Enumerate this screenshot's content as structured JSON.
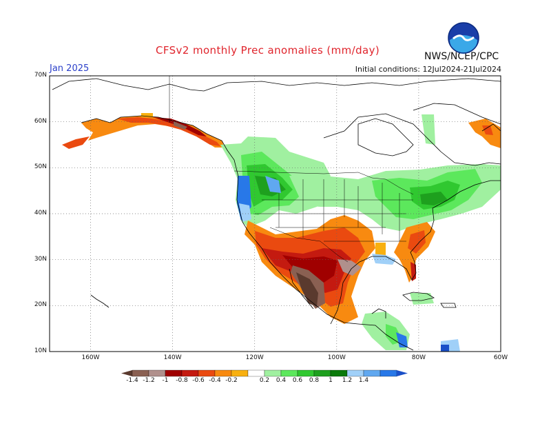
{
  "header": {
    "title": "CFSv2 monthly Prec anomalies (mm/day)",
    "agency": "NWS/NCEP/CPC",
    "logo_text": "NOAA",
    "month": "Jan 2025",
    "initial_conditions": "Initial conditions: 12Jul2024-21Jul2024"
  },
  "map": {
    "lat_labels": [
      "70N",
      "60N",
      "50N",
      "40N",
      "30N",
      "20N",
      "10N"
    ],
    "lon_labels": [
      "160W",
      "140W",
      "120W",
      "100W",
      "80W",
      "60W"
    ],
    "lon_range": [
      -170,
      -60
    ],
    "lat_range": [
      10,
      70
    ],
    "projection": "cylindrical equidistant",
    "grid": "dotted every 10 degrees",
    "anomaly_regions": [
      {
        "region": "Alaska south coast",
        "anomaly": "-0.2 to -0.8"
      },
      {
        "region": "British Columbia coast",
        "anomaly": "-0.4 to -0.8"
      },
      {
        "region": "Pacific Northwest coast",
        "anomaly": "1.0 to 1.2"
      },
      {
        "region": "Northern Rockies / Northern Plains",
        "anomaly": "0.2 to 0.8"
      },
      {
        "region": "Great Lakes / Northeast US",
        "anomaly": "0.2 to 0.8"
      },
      {
        "region": "Eastern Canada",
        "anomaly": "0.2 to 0.4"
      },
      {
        "region": "Southern California / Southwest",
        "anomaly": "-0.4 to -0.8"
      },
      {
        "region": "Southern Plains / Texas",
        "anomaly": "-0.2 to -1.2"
      },
      {
        "region": "Northwest Mexico",
        "anomaly": "-1.0 to -1.4"
      },
      {
        "region": "Southeast US coast / Florida",
        "anomaly": "-0.2 to -0.6"
      },
      {
        "region": "Central America / Caribbean",
        "anomaly": "0.2 to 1.2"
      },
      {
        "region": "Newfoundland",
        "anomaly": "-0.2 to -0.6"
      }
    ]
  },
  "colorbar": {
    "labels": [
      "-1.4",
      "-1.2",
      "-1",
      "-0.8",
      "-0.6",
      "-0.4",
      "-0.2",
      "0.2",
      "0.4",
      "0.6",
      "0.8",
      "1",
      "1.2",
      "1.4"
    ],
    "colors": [
      "#5a3a2e",
      "#8a6052",
      "#b0908c",
      "#a00000",
      "#c41a10",
      "#ea4a10",
      "#f88a10",
      "#f8b010",
      "#ffffff",
      "#a0f0a0",
      "#5ce85c",
      "#30c830",
      "#1ea01e",
      "#0a7a0a",
      "#a0d0f8",
      "#60a8f0",
      "#2878e8",
      "#1a50c8"
    ]
  }
}
